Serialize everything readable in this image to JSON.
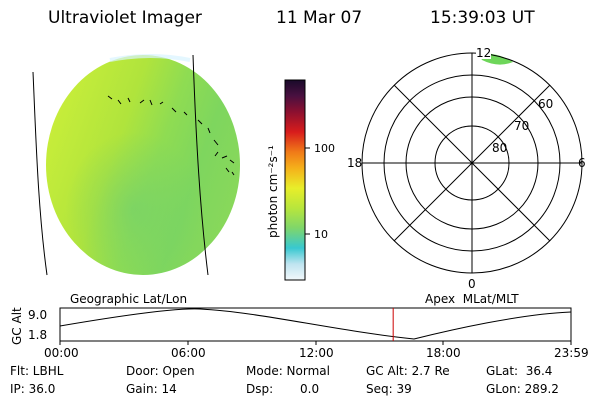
{
  "header": {
    "title": "Ultraviolet Imager",
    "date": "11 Mar 07",
    "time": "15:39:03 UT"
  },
  "globe_panel": {
    "label": "Geographic Lat/Lon"
  },
  "colorbar": {
    "unit_label": "photon cm⁻²s⁻¹",
    "ticks": [
      "100",
      "10"
    ]
  },
  "polar_panel": {
    "label": "Apex  MLat/MLT",
    "mlt_labels": {
      "top": "12",
      "left": "18",
      "right": "6",
      "bottom": "0"
    },
    "lat_labels": [
      "60",
      "70",
      "80"
    ]
  },
  "altitude_strip": {
    "axis_label": "GC Alt",
    "y_ticks": [
      "9.0",
      "1.8"
    ],
    "x_ticks": [
      "00:00",
      "06:00",
      "12:00",
      "18:00",
      "23:59"
    ],
    "current_time_fraction": 0.652,
    "marker_color": "#cc0000"
  },
  "status": {
    "filter": "Flt: LBHL",
    "ip": "IP: 36.0",
    "door": "Door: Open",
    "gain": "Gain: 14",
    "mode": "Mode: Normal",
    "dsp_label": "Dsp:",
    "dsp_value": "0.0",
    "gc_alt": "GC Alt: 2.7 Re",
    "seq": "Seq: 39",
    "glat": "GLat:  36.4",
    "glon": "GLon: 289.2"
  }
}
